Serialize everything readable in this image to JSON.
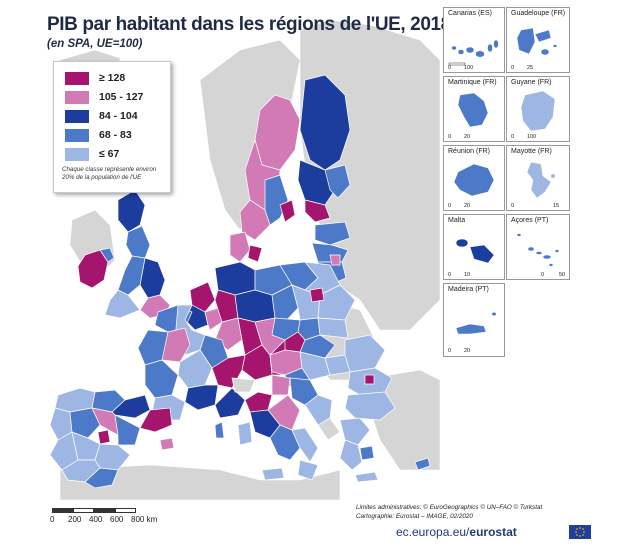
{
  "title": "PIB par habitant dans les régions de l'UE, 2018",
  "subtitle": "(en SPA, UE=100)",
  "legend": {
    "classes": [
      {
        "label": "≥ 128",
        "color": "#a5156d"
      },
      {
        "label": "105 - 127",
        "color": "#d27ab6"
      },
      {
        "label": "84 - 104",
        "color": "#1c3d9e"
      },
      {
        "label": "68 - 83",
        "color": "#4d79c9"
      },
      {
        "label": "≤ 67",
        "color": "#9db6e4"
      }
    ],
    "note": "Chaque classe représente environ 20% de la population de l'UE"
  },
  "colors": {
    "sea": "#ffffff",
    "non_eu_land": "#d5d5d5",
    "boundary": "#ffffff"
  },
  "insets": [
    {
      "name": "Canarias (ES)",
      "scale": [
        "0",
        "100"
      ],
      "fill_class": "68 - 83"
    },
    {
      "name": "Guadeloupe (FR)",
      "scale": [
        "0",
        "25"
      ],
      "fill_class": "68 - 83"
    },
    {
      "name": "Martinique (FR)",
      "scale": [
        "0",
        "20"
      ],
      "fill_class": "68 - 83"
    },
    {
      "name": "Guyane (FR)",
      "scale": [
        "0",
        "100"
      ],
      "fill_class": "≤ 67"
    },
    {
      "name": "Réunion (FR)",
      "scale": [
        "0",
        "20"
      ],
      "fill_class": "68 - 83"
    },
    {
      "name": "Mayotte (FR)",
      "scale": [
        "0",
        "15"
      ],
      "fill_class": "≤ 67"
    },
    {
      "name": "Malta",
      "scale": [
        "0",
        "10"
      ],
      "fill_class": "84 - 104"
    },
    {
      "name": "Açores (PT)",
      "scale": [
        "0",
        "50"
      ],
      "fill_class": "68 - 83"
    },
    {
      "name": "Madeira (PT)",
      "scale": [
        "0",
        "20"
      ],
      "fill_class": "68 - 83"
    }
  ],
  "scalebar": {
    "ticks": [
      "0",
      "200",
      "400",
      "600",
      "800 km"
    ]
  },
  "credits": [
    "Limites administratives: © EuroGeographics © UN–FAO © Turkstat",
    "Cartographie: Eurostat – IMAGE, 02/2020"
  ],
  "source": {
    "prefix": "ec.europa.eu/",
    "brand": "eurostat"
  }
}
